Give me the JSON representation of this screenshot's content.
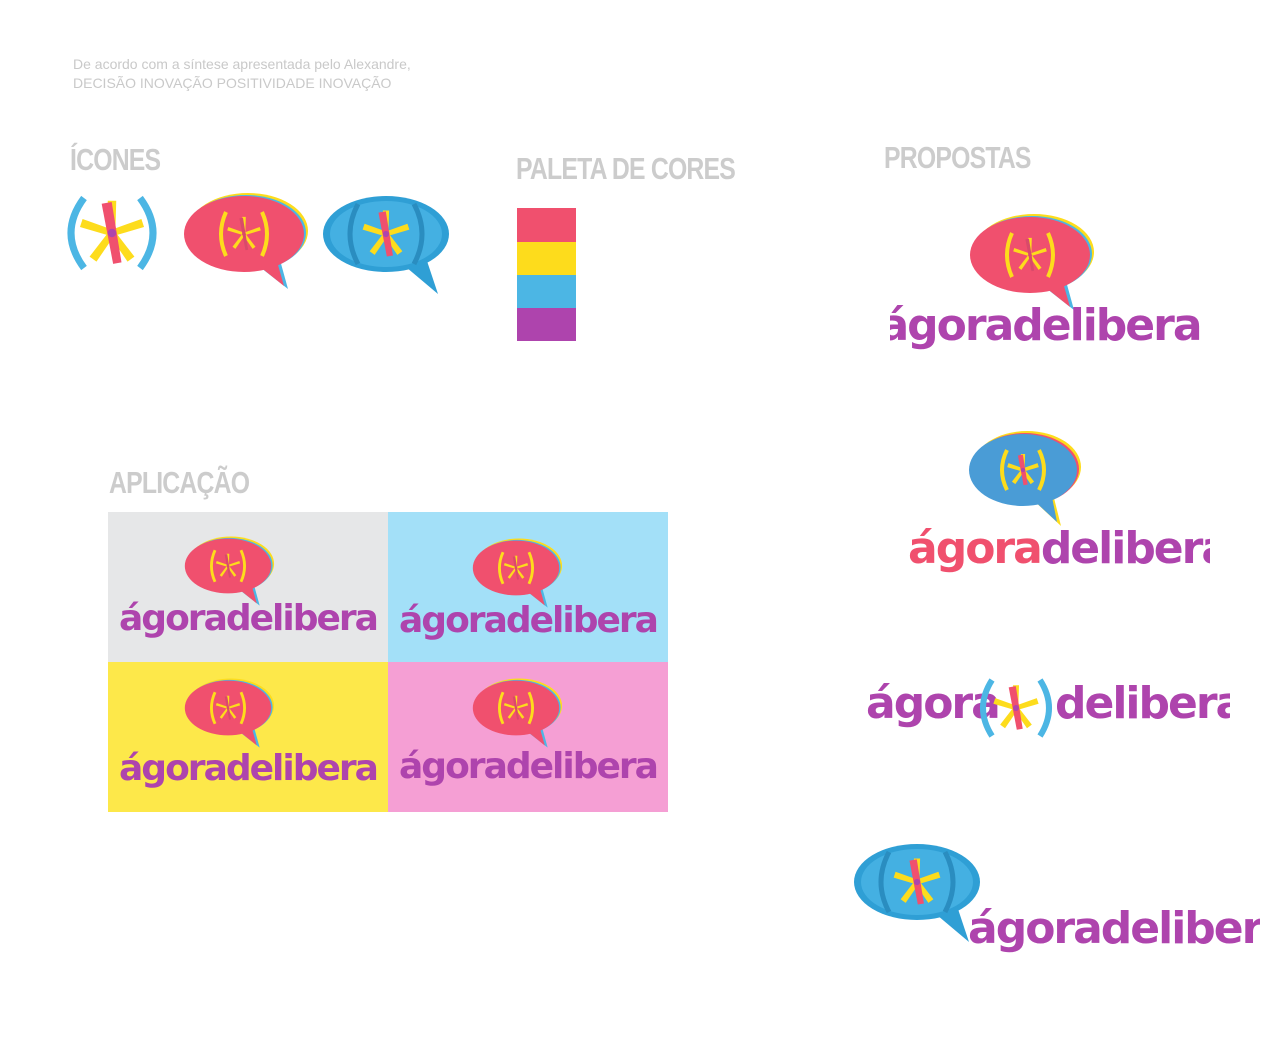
{
  "intro": {
    "line1": "De acordo com a síntese apresentada pelo Alexandre,",
    "line2": "DECISÃO INOVAÇÃO POSITIVIDADE INOVAÇÃO"
  },
  "sections": {
    "icones": "ÍCONES",
    "paleta": "PALETA DE CORES",
    "propostas": "PROPOSTAS",
    "aplicacao": "APLICAÇÃO"
  },
  "brand": {
    "part1": "ágora",
    "part2": "delibera",
    "full": "ágoradelibera"
  },
  "palette": [
    "#f0506e",
    "#fddc1c",
    "#4cb6e4",
    "#ae44ad"
  ],
  "colors": {
    "red": "#f0506e",
    "yellow": "#fddc1c",
    "blue": "#4cb6e4",
    "purple": "#ae44ad",
    "title_gray": "#cccccc",
    "app_gray": "#e6e7e8",
    "app_blue": "#a3e0f8",
    "app_yellow": "#fde84a",
    "app_pink": "#f59fd4"
  },
  "icons": [
    "asterisk-parentheses-icon",
    "red-speech-bubble-icon",
    "blue-speech-bubble-icon"
  ]
}
